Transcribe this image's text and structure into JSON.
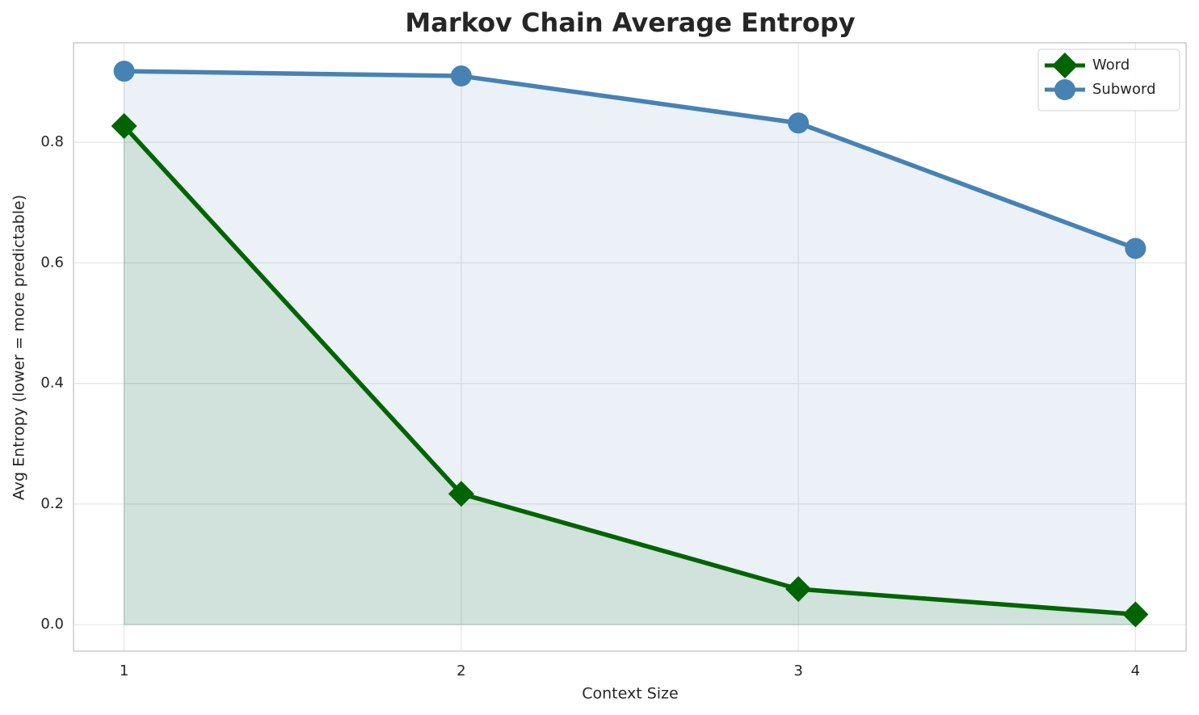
{
  "chart_data": {
    "type": "line",
    "title": "Markov Chain Average Entropy",
    "x_label": "Context Size",
    "y_label": "Avg Entropy (lower = more predictable)",
    "x": [
      1,
      2,
      3,
      4
    ],
    "series": [
      {
        "name": "Word",
        "color": "#006400",
        "marker": "diamond",
        "values": [
          0.827,
          0.217,
          0.059,
          0.017
        ]
      },
      {
        "name": "Subword",
        "color": "#4682b4",
        "marker": "circle",
        "values": [
          0.918,
          0.91,
          0.832,
          0.624
        ]
      }
    ],
    "xlim": [
      0.85,
      4.15
    ],
    "ylim": [
      -0.044,
      0.965
    ],
    "xticks": [
      1,
      2,
      3,
      4
    ],
    "yticks": [
      {
        "value": 0,
        "label": "0.0"
      },
      {
        "value": 0.2,
        "label": "0.2"
      },
      {
        "value": 0.4,
        "label": "0.4"
      },
      {
        "value": 0.6,
        "label": "0.6"
      },
      {
        "value": 0.8,
        "label": "0.8"
      }
    ],
    "grid": true,
    "fill_under": true,
    "legend": "upper right"
  }
}
